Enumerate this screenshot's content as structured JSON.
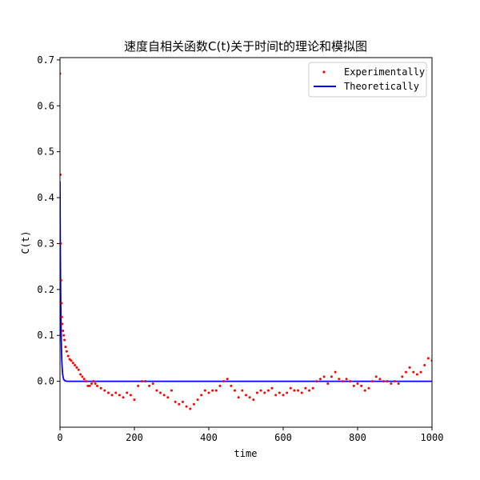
{
  "chart_data": {
    "type": "scatter",
    "title": "速度自相关函数C(t)关于时间t的理论和模拟图",
    "xlabel": "time",
    "ylabel": "C(t)",
    "xlim": [
      0,
      1000
    ],
    "ylim": [
      -0.1,
      0.705
    ],
    "xticks": [
      0,
      200,
      400,
      600,
      800,
      1000
    ],
    "yticks": [
      0.0,
      0.1,
      0.2,
      0.3,
      0.4,
      0.5,
      0.6,
      0.7
    ],
    "legend_position": "top-right",
    "grid": false,
    "series": [
      {
        "name": "Experimentally",
        "kind": "scatter",
        "color": "#ff0000",
        "x": [
          0,
          1,
          2,
          3,
          4,
          5,
          6,
          8,
          10,
          12,
          15,
          18,
          22,
          26,
          30,
          35,
          40,
          45,
          50,
          55,
          60,
          65,
          70,
          75,
          80,
          85,
          90,
          95,
          100,
          110,
          120,
          130,
          140,
          150,
          160,
          170,
          180,
          190,
          200,
          210,
          220,
          230,
          240,
          250,
          260,
          270,
          280,
          290,
          300,
          310,
          320,
          330,
          340,
          350,
          360,
          370,
          380,
          390,
          400,
          410,
          420,
          430,
          440,
          450,
          460,
          470,
          480,
          490,
          500,
          510,
          520,
          530,
          540,
          550,
          560,
          570,
          580,
          590,
          600,
          610,
          620,
          630,
          640,
          650,
          660,
          670,
          680,
          690,
          700,
          710,
          720,
          730,
          740,
          750,
          760,
          770,
          780,
          790,
          800,
          810,
          820,
          830,
          840,
          850,
          860,
          870,
          880,
          890,
          900,
          910,
          920,
          930,
          940,
          950,
          960,
          970,
          980,
          990,
          1000
        ],
        "y": [
          0.67,
          0.45,
          0.3,
          0.22,
          0.17,
          0.14,
          0.125,
          0.11,
          0.1,
          0.09,
          0.075,
          0.065,
          0.055,
          0.048,
          0.045,
          0.04,
          0.035,
          0.03,
          0.025,
          0.015,
          0.01,
          0.005,
          0.0,
          -0.01,
          -0.01,
          -0.005,
          0.0,
          -0.005,
          -0.01,
          -0.015,
          -0.02,
          -0.025,
          -0.03,
          -0.025,
          -0.03,
          -0.035,
          -0.025,
          -0.03,
          -0.04,
          -0.01,
          0.0,
          0.0,
          -0.01,
          -0.005,
          -0.02,
          -0.025,
          -0.03,
          -0.035,
          -0.02,
          -0.045,
          -0.05,
          -0.045,
          -0.055,
          -0.06,
          -0.05,
          -0.04,
          -0.03,
          -0.02,
          -0.025,
          -0.02,
          -0.02,
          -0.01,
          0.0,
          0.005,
          -0.01,
          -0.02,
          -0.035,
          -0.02,
          -0.03,
          -0.035,
          -0.04,
          -0.025,
          -0.02,
          -0.025,
          -0.02,
          -0.015,
          -0.03,
          -0.025,
          -0.03,
          -0.025,
          -0.015,
          -0.02,
          -0.02,
          -0.025,
          -0.015,
          -0.02,
          -0.015,
          0.0,
          0.005,
          0.01,
          -0.005,
          0.01,
          0.02,
          0.005,
          0.0,
          0.005,
          0.0,
          -0.01,
          -0.005,
          -0.01,
          -0.02,
          -0.015,
          0.0,
          0.01,
          0.005,
          0.0,
          0.0,
          -0.005,
          0.0,
          -0.005,
          0.01,
          0.02,
          0.03,
          0.02,
          0.015,
          0.02,
          0.035,
          0.05,
          0.045
        ]
      },
      {
        "name": "Theoretically",
        "kind": "line",
        "color": "#0000ff",
        "x": [
          0,
          0.5,
          1,
          1.5,
          2,
          2.5,
          3,
          3.5,
          4,
          4.5,
          5,
          6,
          7,
          8,
          9,
          10,
          12,
          14,
          16,
          18,
          20,
          30,
          40,
          60,
          100,
          200,
          400,
          600,
          800,
          1000
        ],
        "y": [
          0.435,
          0.346,
          0.274,
          0.218,
          0.173,
          0.137,
          0.109,
          0.087,
          0.069,
          0.055,
          0.043,
          0.027,
          0.017,
          0.011,
          0.007,
          0.004,
          0.002,
          0.001,
          0.0005,
          0.0002,
          0.0,
          0.0,
          0.0,
          0.0,
          0.0,
          0.0,
          0.0,
          0.0,
          0.0,
          0.0
        ]
      }
    ]
  }
}
